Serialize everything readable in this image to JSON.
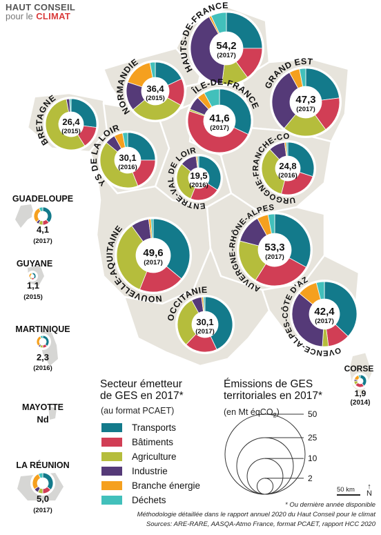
{
  "brand": {
    "line1": "HAUT CONSEIL",
    "line2a": "pour le",
    "line2b": "CLIMAT"
  },
  "colors": {
    "transports": "#137a8b",
    "batiments": "#d13e55",
    "agriculture": "#b5bd3c",
    "industrie": "#553a78",
    "energie": "#f5a01f",
    "dechets": "#42c0bb",
    "land": "#e7e4dc",
    "overseas": "#d6d6d4",
    "border": "#ffffff"
  },
  "legend": {
    "title1": "Secteur émetteur",
    "title2": "de GES en 2017*",
    "subtitle": "(au format PCAET)",
    "items": [
      {
        "key": "transports",
        "label": "Transports"
      },
      {
        "key": "batiments",
        "label": "Bâtiments"
      },
      {
        "key": "agriculture",
        "label": "Agriculture"
      },
      {
        "key": "industrie",
        "label": "Industrie"
      },
      {
        "key": "energie",
        "label": "Branche énergie"
      },
      {
        "key": "dechets",
        "label": "Déchets"
      }
    ]
  },
  "size_legend": {
    "title1": "Émissions de GES",
    "title2": "territoriales en 2017*",
    "subtitle_a": "(en Mt éqCO",
    "subtitle_sub": "2",
    "subtitle_b": ")",
    "values": [
      50,
      25,
      10,
      2
    ],
    "labels": [
      "50",
      "25",
      "10",
      "2"
    ]
  },
  "notes": {
    "asterisk": "* Ou dernière année disponible",
    "methodology": "Méthodologie détaillée dans le rapport annuel 2020 du Haut Conseil pour le climat",
    "sources": "Sources: ARE-RARE, AASQA-Atmo France, format PCAET, rapport HCC 2020"
  },
  "scale_label": "50 km",
  "north_label": "N",
  "regions": [
    {
      "id": "hauts-de-france",
      "name": "HAUTS-DE-FRANCE",
      "value": "54,2",
      "year": "(2017)",
      "shares": [
        0.25,
        0.15,
        0.12,
        0.4,
        0.01,
        0.07
      ]
    },
    {
      "id": "normandie",
      "name": "NORMANDIE",
      "value": "36,4",
      "year": "(2015)",
      "shares": [
        0.18,
        0.15,
        0.31,
        0.16,
        0.17,
        0.03
      ]
    },
    {
      "id": "ile-de-france",
      "name": "ÎLE-DE-FRANCE",
      "value": "41,6",
      "year": "(2017)",
      "shares": [
        0.32,
        0.48,
        0.01,
        0.07,
        0.04,
        0.08
      ]
    },
    {
      "id": "grand-est",
      "name": "GRAND EST",
      "value": "47,3",
      "year": "(2017)",
      "shares": [
        0.23,
        0.17,
        0.21,
        0.31,
        0.05,
        0.03
      ]
    },
    {
      "id": "bretagne",
      "name": "BRETAGNE",
      "value": "26,4",
      "year": "(2015)",
      "shares": [
        0.27,
        0.14,
        0.56,
        0.02,
        0.0,
        0.01
      ]
    },
    {
      "id": "pays-de-la-loire",
      "name": "PAYS DE LA LOIRE",
      "value": "30,1",
      "year": "(2016)",
      "shares": [
        0.25,
        0.19,
        0.42,
        0.06,
        0.05,
        0.03
      ]
    },
    {
      "id": "centre-val-de-loire",
      "name": "CENTRE-VAL DE LOIRE",
      "value": "19,5",
      "year": "(2016)",
      "shares": [
        0.34,
        0.22,
        0.3,
        0.12,
        0.01,
        0.01
      ]
    },
    {
      "id": "bourgogne-franche-comte",
      "name": "BOURGOGNE-FRANCHE-COMTÉ",
      "value": "24,8",
      "year": "(2016)",
      "shares": [
        0.3,
        0.24,
        0.34,
        0.1,
        0.01,
        0.01
      ]
    },
    {
      "id": "nouvelle-aquitaine",
      "name": "NOUVELLE-AQUITAINE",
      "value": "49,6",
      "year": "(2017)",
      "shares": [
        0.36,
        0.2,
        0.34,
        0.08,
        0.01,
        0.01
      ]
    },
    {
      "id": "auvergne-rhone-alpes",
      "name": "AUVERGNE-RHÔNE-ALPES",
      "value": "53,3",
      "year": "(2017)",
      "shares": [
        0.33,
        0.26,
        0.2,
        0.13,
        0.05,
        0.03
      ]
    },
    {
      "id": "occitanie",
      "name": "OCCITANIE",
      "value": "30,1",
      "year": "(2017)",
      "shares": [
        0.43,
        0.19,
        0.3,
        0.06,
        0.01,
        0.01
      ]
    },
    {
      "id": "provence-alpes-cote-dazur",
      "name": "PROVENCE-ALPES-CÔTE D'AZUR",
      "value": "42,4",
      "year": "(2017)",
      "shares": [
        0.37,
        0.11,
        0.03,
        0.35,
        0.1,
        0.04
      ]
    },
    {
      "id": "corse",
      "name": "CORSE",
      "value": "1,9",
      "year": "(2014)",
      "shares": [
        0.4,
        0.25,
        0.1,
        0.05,
        0.15,
        0.05
      ]
    }
  ],
  "overseas": [
    {
      "id": "guadeloupe",
      "name": "GUADELOUPE",
      "value": "4,1",
      "year": "(2017)",
      "shares": [
        0.38,
        0.12,
        0.08,
        0.05,
        0.3,
        0.07
      ]
    },
    {
      "id": "guyane",
      "name": "GUYANE",
      "value": "1,1",
      "year": "(2015)",
      "shares": [
        0.4,
        0.15,
        0.1,
        0.05,
        0.25,
        0.05
      ]
    },
    {
      "id": "martinique",
      "name": "MARTINIQUE",
      "value": "2,3",
      "year": "(2016)",
      "shares": [
        0.38,
        0.12,
        0.08,
        0.05,
        0.3,
        0.07
      ]
    },
    {
      "id": "mayotte",
      "name": "MAYOTTE",
      "value": "Nd",
      "year": "",
      "shares": []
    },
    {
      "id": "la-reunion",
      "name": "LA RÉUNION",
      "value": "5,0",
      "year": "(2017)",
      "shares": [
        0.36,
        0.14,
        0.08,
        0.07,
        0.28,
        0.07
      ]
    }
  ]
}
